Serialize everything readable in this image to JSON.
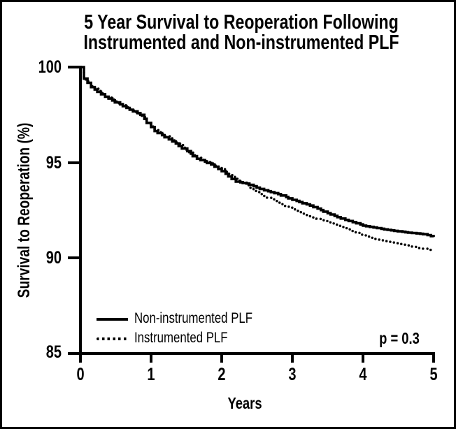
{
  "title": {
    "line1": "5 Year Survival to Reoperation Following",
    "line2": "Instrumented and Non-instrumented PLF"
  },
  "axes": {
    "y": {
      "label": "Survival to Reoperation (%)",
      "tick_labels": [
        "100",
        "95",
        "90",
        "85"
      ],
      "range": [
        85,
        100
      ]
    },
    "x": {
      "label": "Years",
      "tick_labels": [
        "0",
        "1",
        "2",
        "3",
        "4",
        "5"
      ],
      "range": [
        0,
        5
      ]
    }
  },
  "legend": {
    "items": [
      {
        "label": "Non-instrumented PLF",
        "style": "solid"
      },
      {
        "label": "Instrumented PLF",
        "style": "dotted"
      }
    ]
  },
  "annotation": {
    "p_value": "p = 0.3"
  },
  "colors": {
    "line": "#000000",
    "background": "#ffffff",
    "border": "#000000"
  },
  "chart_data": {
    "type": "line",
    "subtype": "kaplan-meier-step",
    "title": "5 Year Survival to Reoperation Following Instrumented and Non-instrumented PLF",
    "xlabel": "Years",
    "ylabel": "Survival to Reoperation (%)",
    "xlim": [
      0,
      5
    ],
    "ylim": [
      85,
      100
    ],
    "x_ticks": [
      0,
      1,
      2,
      3,
      4,
      5
    ],
    "y_ticks": [
      85,
      90,
      95,
      100
    ],
    "grid": false,
    "legend_position": "lower-left-inside",
    "annotations": [
      {
        "text": "p = 0.3",
        "position": "lower-right-inside"
      }
    ],
    "series": [
      {
        "name": "Non-instrumented PLF",
        "style": "solid",
        "points": [
          [
            0,
            100
          ],
          [
            0.05,
            99.4
          ],
          [
            0.15,
            98.95
          ],
          [
            0.35,
            98.45
          ],
          [
            0.6,
            97.95
          ],
          [
            0.85,
            97.5
          ],
          [
            1.05,
            96.65
          ],
          [
            1.35,
            96.0
          ],
          [
            1.65,
            95.2
          ],
          [
            1.85,
            94.9
          ],
          [
            2.0,
            94.55
          ],
          [
            2.2,
            94.0
          ],
          [
            2.35,
            93.9
          ],
          [
            2.6,
            93.55
          ],
          [
            2.8,
            93.35
          ],
          [
            3.0,
            93.05
          ],
          [
            3.25,
            92.75
          ],
          [
            3.5,
            92.35
          ],
          [
            3.75,
            92.0
          ],
          [
            4.0,
            91.7
          ],
          [
            4.3,
            91.5
          ],
          [
            4.6,
            91.35
          ],
          [
            4.85,
            91.25
          ],
          [
            5.0,
            91.1
          ]
        ]
      },
      {
        "name": "Instrumented PLF",
        "style": "dotted",
        "points": [
          [
            0,
            100
          ],
          [
            0.05,
            99.35
          ],
          [
            0.15,
            99.0
          ],
          [
            0.35,
            98.5
          ],
          [
            0.6,
            98.0
          ],
          [
            0.85,
            97.45
          ],
          [
            1.05,
            96.7
          ],
          [
            1.35,
            96.05
          ],
          [
            1.65,
            95.25
          ],
          [
            1.85,
            94.95
          ],
          [
            2.0,
            94.65
          ],
          [
            2.15,
            94.25
          ],
          [
            2.3,
            93.95
          ],
          [
            2.45,
            93.55
          ],
          [
            2.6,
            93.25
          ],
          [
            2.8,
            92.9
          ],
          [
            3.0,
            92.55
          ],
          [
            3.2,
            92.25
          ],
          [
            3.4,
            92.0
          ],
          [
            3.6,
            91.75
          ],
          [
            3.8,
            91.5
          ],
          [
            3.95,
            91.25
          ],
          [
            4.15,
            91.0
          ],
          [
            4.35,
            90.85
          ],
          [
            4.55,
            90.7
          ],
          [
            4.75,
            90.55
          ],
          [
            5.0,
            90.4
          ]
        ]
      }
    ]
  }
}
